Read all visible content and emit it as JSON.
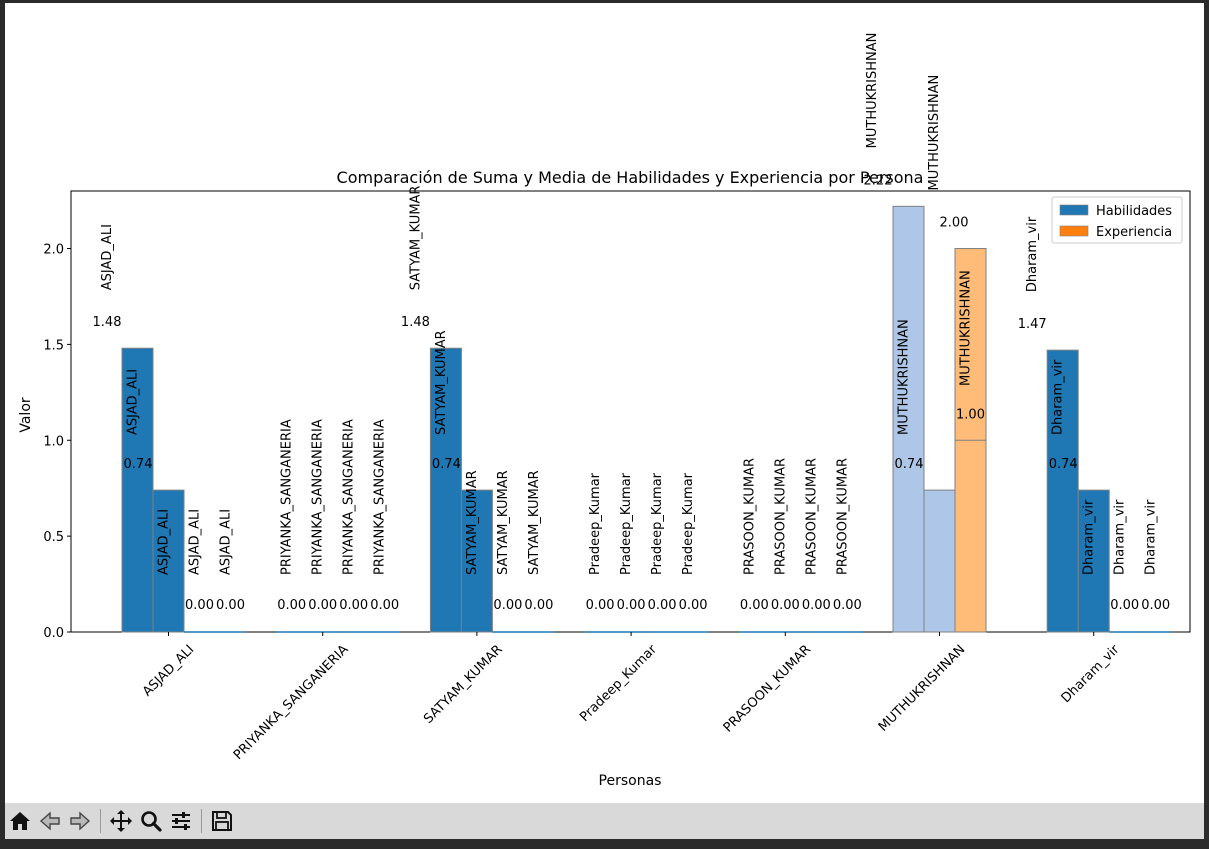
{
  "toolbar": {
    "buttons": [
      {
        "name": "home-icon"
      },
      {
        "name": "back-arrow-icon"
      },
      {
        "name": "forward-arrow-icon"
      },
      {
        "name": "pan-icon"
      },
      {
        "name": "zoom-icon"
      },
      {
        "name": "configure-subplots-icon"
      },
      {
        "name": "save-icon"
      }
    ]
  },
  "chart_data": {
    "type": "bar",
    "title": "Comparación de Suma y Media de Habilidades y Experiencia por Persona",
    "xlabel": "Personas",
    "ylabel": "Valor",
    "ylim": [
      0,
      2.3
    ],
    "yticks": [
      "0.0",
      "0.5",
      "1.0",
      "1.5",
      "2.0"
    ],
    "legend_position": "top-right",
    "grid": false,
    "colors": {
      "habilidades": "#1f77b4",
      "habilidades_light": "#aec7e8",
      "experiencia": "#ff7f0e",
      "experiencia_light": "#ffbb78",
      "edge": "#808080"
    },
    "legend": [
      {
        "label": "Habilidades",
        "color": "#1f77b4"
      },
      {
        "label": "Experiencia",
        "color": "#ff7f0e"
      }
    ],
    "categories": [
      "ASJAD_ALI",
      "PRIYANKA_SANGANERIA",
      "SATYAM_KUMAR",
      "Pradeep_Kumar",
      "PRASOON_KUMAR",
      "MUTHUKRISHNAN",
      "Dharam_vir"
    ],
    "groups": [
      {
        "category": "ASJAD_ALI",
        "bars": [
          {
            "value": 1.48,
            "label": "1.48",
            "name": "ASJAD_ALI",
            "style": "dark-blue"
          },
          {
            "value": 0.74,
            "label": "0.74",
            "name": "ASJAD_ALI",
            "style": "dark-blue"
          },
          {
            "value": 0.0,
            "label": "0.00",
            "name": "ASJAD_ALI",
            "style": "dark-blue"
          },
          {
            "value": 0.0,
            "label": "0.00",
            "name": "ASJAD_ALI",
            "style": "dark-blue"
          }
        ]
      },
      {
        "category": "PRIYANKA_SANGANERIA",
        "bars": [
          {
            "value": 0.0,
            "label": "0.00",
            "name": "PRIYANKA_SANGANERIA",
            "style": "dark-blue"
          },
          {
            "value": 0.0,
            "label": "0.00",
            "name": "PRIYANKA_SANGANERIA",
            "style": "dark-blue"
          },
          {
            "value": 0.0,
            "label": "0.00",
            "name": "PRIYANKA_SANGANERIA",
            "style": "dark-blue"
          },
          {
            "value": 0.0,
            "label": "0.00",
            "name": "PRIYANKA_SANGANERIA",
            "style": "dark-blue"
          }
        ]
      },
      {
        "category": "SATYAM_KUMAR",
        "bars": [
          {
            "value": 1.48,
            "label": "1.48",
            "name": "SATYAM_KUMAR",
            "style": "dark-blue"
          },
          {
            "value": 0.74,
            "label": "0.74",
            "name": "SATYAM_KUMAR",
            "style": "dark-blue"
          },
          {
            "value": 0.0,
            "label": "0.00",
            "name": "SATYAM_KUMAR",
            "style": "dark-blue"
          },
          {
            "value": 0.0,
            "label": "0.00",
            "name": "SATYAM_KUMAR",
            "style": "dark-blue"
          }
        ]
      },
      {
        "category": "Pradeep_Kumar",
        "bars": [
          {
            "value": 0.0,
            "label": "0.00",
            "name": "Pradeep_Kumar",
            "style": "dark-blue"
          },
          {
            "value": 0.0,
            "label": "0.00",
            "name": "Pradeep_Kumar",
            "style": "dark-blue"
          },
          {
            "value": 0.0,
            "label": "0.00",
            "name": "Pradeep_Kumar",
            "style": "dark-blue"
          },
          {
            "value": 0.0,
            "label": "0.00",
            "name": "Pradeep_Kumar",
            "style": "dark-blue"
          }
        ]
      },
      {
        "category": "PRASOON_KUMAR",
        "bars": [
          {
            "value": 0.0,
            "label": "0.00",
            "name": "PRASOON_KUMAR",
            "style": "dark-blue"
          },
          {
            "value": 0.0,
            "label": "0.00",
            "name": "PRASOON_KUMAR",
            "style": "dark-blue"
          },
          {
            "value": 0.0,
            "label": "0.00",
            "name": "PRASOON_KUMAR",
            "style": "dark-blue"
          },
          {
            "value": 0.0,
            "label": "0.00",
            "name": "PRASOON_KUMAR",
            "style": "dark-blue"
          }
        ]
      },
      {
        "category": "MUTHUKRISHNAN",
        "bars": [
          {
            "value": 2.22,
            "label": "2.22",
            "name": "MUTHUKRISHNAN",
            "style": "light-blue"
          },
          {
            "value": 0.74,
            "label": "0.74",
            "name": "MUTHUKRISHNAN",
            "style": "light-blue"
          },
          {
            "value": 2.0,
            "label": "2.00",
            "name": "MUTHUKRISHNAN",
            "style": "light-orange"
          },
          {
            "value": 1.0,
            "label": "1.00",
            "name": "",
            "style": "light-orange"
          }
        ]
      },
      {
        "category": "Dharam_vir",
        "bars": [
          {
            "value": 1.47,
            "label": "1.47",
            "name": "Dharam_vir",
            "style": "dark-blue"
          },
          {
            "value": 0.74,
            "label": "0.74",
            "name": "Dharam_vir",
            "style": "dark-blue"
          },
          {
            "value": 0.0,
            "label": "0.00",
            "name": "Dharam_vir",
            "style": "dark-blue"
          },
          {
            "value": 0.0,
            "label": "0.00",
            "name": "Dharam_vir",
            "style": "dark-blue"
          }
        ]
      }
    ]
  }
}
